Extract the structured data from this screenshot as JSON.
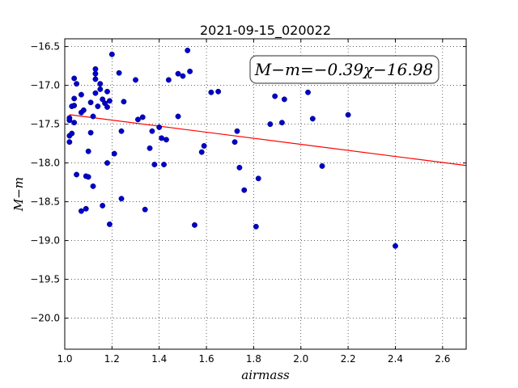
{
  "chart_data": {
    "type": "scatter",
    "title": "2021-09-15_020022",
    "xlabel": "airmass",
    "ylabel": "M−m",
    "xlim": [
      1.0,
      2.7
    ],
    "ylim": [
      -16.4,
      -20.4
    ],
    "y_inverted": true,
    "grid": true,
    "grid_style": "dotted",
    "x_ticks": [
      1.0,
      1.2,
      1.4,
      1.6,
      1.8,
      2.0,
      2.2,
      2.4,
      2.6
    ],
    "x_tick_labels": [
      "1.0",
      "1.2",
      "1.4",
      "1.6",
      "1.8",
      "2.0",
      "2.2",
      "2.4",
      "2.6"
    ],
    "y_ticks": [
      -16.5,
      -17.0,
      -17.5,
      -18.0,
      -18.5,
      -19.0,
      -19.5,
      -20.0
    ],
    "y_tick_labels": [
      "−16.5",
      "−17.0",
      "−17.5",
      "−18.0",
      "−18.5",
      "−19.0",
      "−19.5",
      "−20.0"
    ],
    "annotation": {
      "text": "M−m=−0.39χ−16.98",
      "placement": "top-right"
    },
    "fit_line": {
      "slope": -0.39,
      "intercept": -16.98,
      "color": "#ff0000",
      "x_range": [
        1.02,
        2.7
      ]
    },
    "point_color": "#0000cc",
    "series": [
      {
        "points": [
          [
            1.02,
            -17.65
          ],
          [
            1.02,
            -17.73
          ],
          [
            1.02,
            -17.42
          ],
          [
            1.02,
            -17.45
          ],
          [
            1.03,
            -17.27
          ],
          [
            1.03,
            -17.62
          ],
          [
            1.04,
            -17.26
          ],
          [
            1.04,
            -17.17
          ],
          [
            1.04,
            -17.48
          ],
          [
            1.04,
            -16.91
          ],
          [
            1.05,
            -16.98
          ],
          [
            1.05,
            -18.15
          ],
          [
            1.07,
            -17.12
          ],
          [
            1.07,
            -17.35
          ],
          [
            1.07,
            -18.62
          ],
          [
            1.08,
            -17.32
          ],
          [
            1.09,
            -18.17
          ],
          [
            1.09,
            -18.59
          ],
          [
            1.1,
            -18.18
          ],
          [
            1.1,
            -17.85
          ],
          [
            1.11,
            -17.61
          ],
          [
            1.11,
            -17.22
          ],
          [
            1.12,
            -18.3
          ],
          [
            1.12,
            -17.4
          ],
          [
            1.13,
            -16.92
          ],
          [
            1.13,
            -16.79
          ],
          [
            1.13,
            -16.85
          ],
          [
            1.13,
            -17.1
          ],
          [
            1.14,
            -17.27
          ],
          [
            1.15,
            -16.98
          ],
          [
            1.15,
            -17.05
          ],
          [
            1.16,
            -17.18
          ],
          [
            1.16,
            -18.55
          ],
          [
            1.17,
            -17.23
          ],
          [
            1.18,
            -17.28
          ],
          [
            1.18,
            -18.0
          ],
          [
            1.18,
            -17.08
          ],
          [
            1.19,
            -17.2
          ],
          [
            1.19,
            -18.79
          ],
          [
            1.2,
            -16.6
          ],
          [
            1.21,
            -17.88
          ],
          [
            1.23,
            -16.84
          ],
          [
            1.24,
            -17.59
          ],
          [
            1.24,
            -18.46
          ],
          [
            1.25,
            -17.21
          ],
          [
            1.3,
            -16.93
          ],
          [
            1.31,
            -17.44
          ],
          [
            1.33,
            -17.41
          ],
          [
            1.34,
            -18.6
          ],
          [
            1.36,
            -17.81
          ],
          [
            1.37,
            -17.59
          ],
          [
            1.38,
            -18.02
          ],
          [
            1.4,
            -17.54
          ],
          [
            1.41,
            -17.68
          ],
          [
            1.42,
            -18.02
          ],
          [
            1.43,
            -17.7
          ],
          [
            1.44,
            -16.93
          ],
          [
            1.48,
            -16.85
          ],
          [
            1.48,
            -17.4
          ],
          [
            1.5,
            -16.88
          ],
          [
            1.52,
            -16.55
          ],
          [
            1.53,
            -16.82
          ],
          [
            1.55,
            -18.8
          ],
          [
            1.58,
            -17.86
          ],
          [
            1.59,
            -17.78
          ],
          [
            1.62,
            -17.09
          ],
          [
            1.65,
            -17.08
          ],
          [
            1.72,
            -17.73
          ],
          [
            1.73,
            -17.59
          ],
          [
            1.74,
            -18.06
          ],
          [
            1.76,
            -18.35
          ],
          [
            1.81,
            -18.82
          ],
          [
            1.82,
            -18.2
          ],
          [
            1.87,
            -17.5
          ],
          [
            1.89,
            -17.14
          ],
          [
            1.92,
            -17.48
          ],
          [
            1.93,
            -17.18
          ],
          [
            2.03,
            -17.09
          ],
          [
            2.05,
            -17.43
          ],
          [
            2.09,
            -18.04
          ],
          [
            2.2,
            -17.38
          ],
          [
            2.4,
            -19.07
          ]
        ]
      }
    ]
  }
}
